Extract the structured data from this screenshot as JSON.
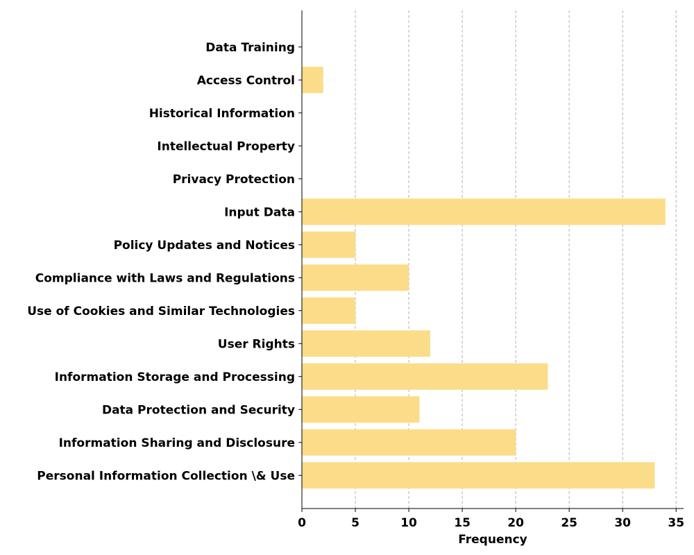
{
  "chart_data": {
    "type": "bar",
    "orientation": "horizontal",
    "categories": [
      "Personal Information Collection \\& Use",
      "Information Sharing and Disclosure",
      "Data Protection and Security",
      "Information Storage and Processing",
      "User Rights",
      "Use of Cookies and Similar Technologies",
      "Compliance with Laws and Regulations",
      "Policy Updates and Notices",
      "Input Data",
      "Privacy Protection",
      "Intellectual Property",
      "Historical Information",
      "Access Control",
      "Data Training"
    ],
    "values": [
      33,
      20,
      11,
      23,
      12,
      5,
      10,
      5,
      34,
      0,
      0,
      0,
      2,
      0
    ],
    "title": "",
    "xlabel": "Frequency",
    "ylabel": "",
    "xlim": [
      0,
      35.7
    ],
    "xticks": [
      0,
      5,
      10,
      15,
      20,
      25,
      30,
      35
    ],
    "grid": "x-dashed",
    "bar_color": "#fbdc88"
  }
}
